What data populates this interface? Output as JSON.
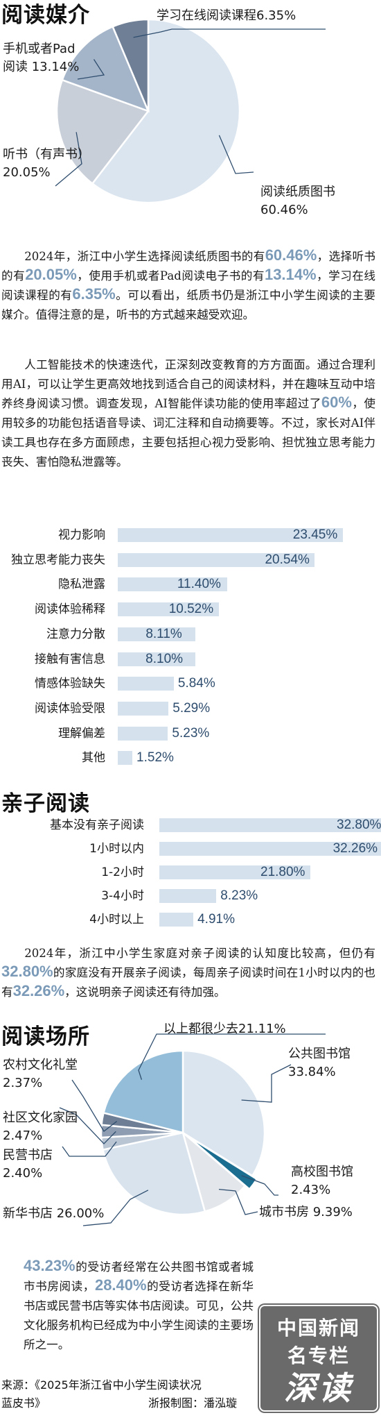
{
  "section1": {
    "heading": "阅读媒介",
    "paragraph": {
      "parts": [
        {
          "t": "2024年，浙江中小学生选择阅读纸质图书的有"
        },
        {
          "t": "60.46%",
          "hl": true
        },
        {
          "t": "，选择听书的有"
        },
        {
          "t": "20.05%",
          "hl": true
        },
        {
          "t": "，使用手机或者Pad阅读电子书的有"
        },
        {
          "t": "13.14%",
          "hl": true
        },
        {
          "t": "，学习在线阅读课程的有"
        },
        {
          "t": "6.35%",
          "hl": true
        },
        {
          "t": "。可以看出，纸质书仍是浙江中小学生阅读的主要媒介。值得注意的是，听书的方式越来越受欢迎。"
        }
      ]
    }
  },
  "paragraph2": {
    "parts": [
      {
        "t": "人工智能技术的快速迭代，正深刻改变教育的方方面面。通过合理利用AI，可以让学生更高效地找到适合自己的阅读材料，并在趣味互动中培养终身阅读习惯。调查发现，AI智能伴读功能的使用率超过了"
      },
      {
        "t": "60%",
        "hl": true
      },
      {
        "t": "，使用较多的功能包括语音导读、词汇注释和自动摘要等。不过，家长对AI伴读工具也存在多方面顾虑，主要包括担心视力受影响、担忧独立思考能力丧失、害怕隐私泄露等。"
      }
    ]
  },
  "section3": {
    "heading": "亲子阅读",
    "paragraph": {
      "parts": [
        {
          "t": "2024年，浙江中小学生家庭对亲子阅读的认知度比较高，但仍有"
        },
        {
          "t": "32.80%",
          "hl": true
        },
        {
          "t": "的家庭没有开展亲子阅读，每周亲子阅读时间在1小时以内的也有"
        },
        {
          "t": "32.26%",
          "hl": true
        },
        {
          "t": "，这说明亲子阅读还有待加强。"
        }
      ]
    }
  },
  "section4": {
    "heading": "阅读场所",
    "paragraph": {
      "parts": [
        {
          "t": "43.23%",
          "hl": true
        },
        {
          "t": "的受访者经常在公共图书馆或者城市书房阅读，"
        },
        {
          "t": "28.40%",
          "hl": true
        },
        {
          "t": "的受访者选择在新华书店或民营书店等实体书店阅读。可见，公共文化服务机构已经成为中小学生阅读的主要场所之一。"
        }
      ]
    }
  },
  "footer": {
    "source_line1": "来源：《2025年浙江省中小学生阅读状况",
    "source_line2": "蓝皮书》",
    "credit": "浙报制图：潘泓璇",
    "badge_line1": "中国新闻",
    "badge_line2": "名专栏",
    "badge_line3": "深读"
  },
  "chart_data": [
    {
      "type": "pie",
      "categories": [
        "阅读纸质图书",
        "听书（有声书）",
        "手机或者Pad阅读",
        "学习在线阅读课程"
      ],
      "values": [
        60.46,
        20.05,
        13.14,
        6.35
      ],
      "value_labels": [
        "60.46%",
        "20.05%",
        "13.14%",
        "6.35%"
      ],
      "label_lines": [
        [
          "阅读纸质图书",
          "60.46%"
        ],
        [
          "听书（有声书）",
          "20.05%"
        ],
        [
          "手机或者Pad",
          "阅读 13.14%"
        ],
        [
          "学习在线阅读课程6.35%"
        ]
      ],
      "colors": [
        "#dbe5ef",
        "#c9cfd8",
        "#a5b5c9",
        "#6f7f95"
      ]
    },
    {
      "type": "bar",
      "orientation": "horizontal",
      "categories": [
        "视力影响",
        "独立思考能力丧失",
        "隐私泄露",
        "阅读体验稀释",
        "注意力分散",
        "接触有害信息",
        "情感体验缺失",
        "阅读体验受限",
        "理解偏差",
        "其他"
      ],
      "values": [
        23.45,
        20.54,
        11.4,
        10.52,
        8.11,
        8.1,
        5.84,
        5.29,
        5.23,
        1.52
      ],
      "value_labels": [
        "23.45%",
        "20.54%",
        "11.40%",
        "10.52%",
        "8.11%",
        "8.10%",
        "5.84%",
        "5.29%",
        "5.23%",
        "1.52%"
      ],
      "color": "#d5e1ec"
    },
    {
      "type": "bar",
      "orientation": "horizontal",
      "categories": [
        "基本没有亲子阅读",
        "1小时以内",
        "1-2小时",
        "3-4小时",
        "4小时以上"
      ],
      "values": [
        32.8,
        32.26,
        21.8,
        8.23,
        4.91
      ],
      "value_labels": [
        "32.80%",
        "32.26%",
        "21.80%",
        "8.23%",
        "4.91%"
      ],
      "color": "#d5e1ec"
    },
    {
      "type": "pie",
      "categories": [
        "公共图书馆",
        "高校图书馆",
        "城市书房",
        "新华书店",
        "民营书店",
        "社区文化家园",
        "农村文化礼堂",
        "以上都很少去"
      ],
      "values": [
        33.84,
        2.43,
        9.39,
        26.0,
        2.4,
        2.47,
        2.37,
        21.11
      ],
      "value_labels": [
        "33.84%",
        "2.43%",
        "9.39%",
        "26.00%",
        "2.40%",
        "2.47%",
        "2.37%",
        "21.11%"
      ],
      "label_lines": [
        [
          "公共图书馆",
          "33.84%"
        ],
        [
          "高校图书馆",
          "2.43%"
        ],
        [
          "城市书房 9.39%"
        ],
        [
          "新华书店 26.00%"
        ],
        [
          "民营书店",
          "2.40%"
        ],
        [
          "社区文化家园",
          "2.47%"
        ],
        [
          "农村文化礼堂",
          "2.37%"
        ],
        [
          "以上都很少去21.11%"
        ]
      ],
      "colors": [
        "#dbe5ef",
        "#1c6e90",
        "#e3e6ea",
        "#d9e3ee",
        "#b9c5d3",
        "#8e9db1",
        "#6e7e95",
        "#93bdd8"
      ]
    }
  ]
}
